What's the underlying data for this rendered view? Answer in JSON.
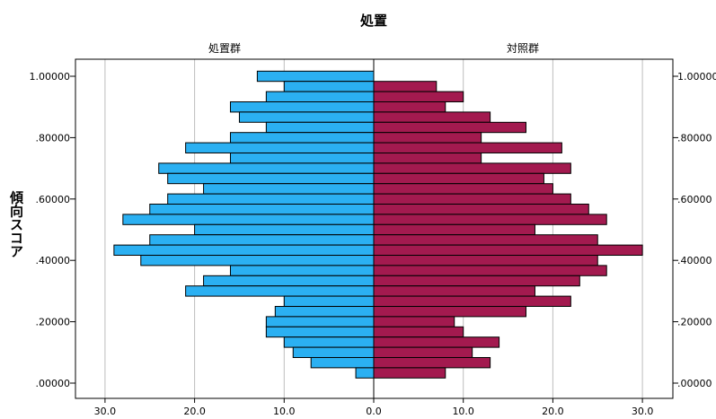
{
  "chart_data": {
    "type": "bar",
    "orientation": "horizontal-back-to-back",
    "title": "処置",
    "ylabel": "傾向スコア",
    "yticks": [
      "1.00000",
      ".80000",
      ".60000",
      ".40000",
      ".20000",
      ".00000"
    ],
    "ytick_values": [
      1.0,
      0.8,
      0.6,
      0.4,
      0.2,
      0.0
    ],
    "ylim": [
      -0.03,
      1.05
    ],
    "xlim": [
      0,
      33
    ],
    "xticks_left": [
      "30.0",
      "20.0",
      "10.0",
      "0.0"
    ],
    "xticks_right": [
      "10.0",
      "20.0",
      "30.0"
    ],
    "xtick_values": [
      0,
      10,
      20,
      30
    ],
    "grid": true,
    "bin_width": 0.0333,
    "bin_centers": [
      1.0,
      0.9667,
      0.9333,
      0.9,
      0.8667,
      0.8333,
      0.8,
      0.7667,
      0.7333,
      0.7,
      0.6667,
      0.6333,
      0.6,
      0.5667,
      0.5333,
      0.5,
      0.4667,
      0.4333,
      0.4,
      0.3667,
      0.3333,
      0.3,
      0.2667,
      0.2333,
      0.2,
      0.1667,
      0.1333,
      0.1,
      0.0667,
      0.0333,
      0.0
    ],
    "series": [
      {
        "name": "処置群",
        "side": "left",
        "color": "#2bb0f2",
        "values": [
          13,
          10,
          12,
          16,
          15,
          12,
          16,
          21,
          16,
          24,
          23,
          19,
          23,
          25,
          28,
          20,
          25,
          29,
          26,
          16,
          19,
          21,
          10,
          11,
          12,
          12,
          10,
          9,
          7,
          2,
          0
        ]
      },
      {
        "name": "対照群",
        "side": "right",
        "color": "#a31a4f",
        "values": [
          0,
          7,
          10,
          8,
          13,
          17,
          12,
          21,
          12,
          22,
          19,
          20,
          22,
          24,
          26,
          18,
          25,
          30,
          25,
          26,
          23,
          18,
          22,
          17,
          9,
          10,
          14,
          11,
          13,
          8,
          0
        ]
      }
    ]
  }
}
